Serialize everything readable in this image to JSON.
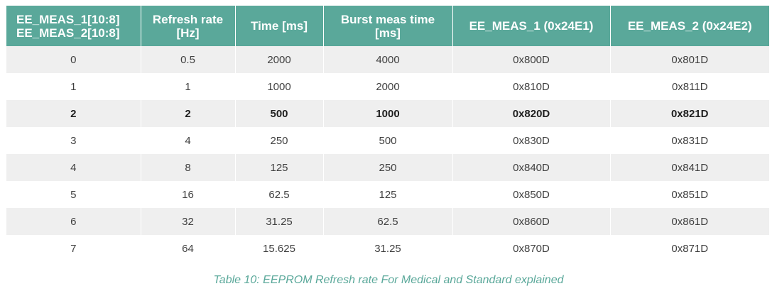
{
  "table": {
    "headers": [
      [
        "EE_MEAS_1[10:8]",
        "EE_MEAS_2[10:8]"
      ],
      [
        "Refresh rate",
        "[Hz]"
      ],
      [
        "Time [ms]"
      ],
      [
        "Burst meas time",
        "[ms]"
      ],
      [
        "EE_MEAS_1 (0x24E1)"
      ],
      [
        "EE_MEAS_2 (0x24E2)"
      ]
    ],
    "rows": [
      [
        "0",
        "0.5",
        "2000",
        "4000",
        "0x800D",
        "0x801D"
      ],
      [
        "1",
        "1",
        "1000",
        "2000",
        "0x810D",
        "0x811D"
      ],
      [
        "2",
        "2",
        "500",
        "1000",
        "0x820D",
        "0x821D"
      ],
      [
        "3",
        "4",
        "250",
        "500",
        "0x830D",
        "0x831D"
      ],
      [
        "4",
        "8",
        "125",
        "250",
        "0x840D",
        "0x841D"
      ],
      [
        "5",
        "16",
        "62.5",
        "125",
        "0x850D",
        "0x851D"
      ],
      [
        "6",
        "32",
        "31.25",
        "62.5",
        "0x860D",
        "0x861D"
      ],
      [
        "7",
        "64",
        "15.625",
        "31.25",
        "0x870D",
        "0x871D"
      ]
    ],
    "highlighted_row": "2"
  },
  "caption": "Table 10: EEPROM Refresh rate For Medical and Standard explained",
  "colors": {
    "header_bg": "#5aa89a",
    "header_text": "#ffffff",
    "row_shade": "#efefef",
    "caption": "#5aa89a"
  }
}
